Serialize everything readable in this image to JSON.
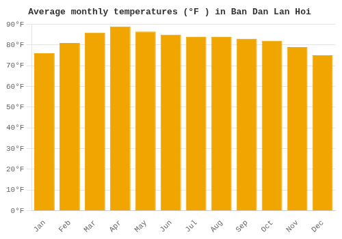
{
  "chart_data": {
    "type": "bar",
    "title": "Average monthly temperatures (°F ) in Ban Dan Lan Hoi",
    "categories": [
      "Jan",
      "Feb",
      "Mar",
      "Apr",
      "May",
      "Jun",
      "Jul",
      "Aug",
      "Sep",
      "Oct",
      "Nov",
      "Dec"
    ],
    "values": [
      76,
      81,
      86,
      89,
      86.5,
      85,
      84,
      84,
      83,
      82,
      79,
      75
    ],
    "color": "#F0A500",
    "ylim": [
      0,
      90
    ],
    "yticks": [
      {
        "value": 0,
        "label": "0°F"
      },
      {
        "value": 10,
        "label": "10°F"
      },
      {
        "value": 20,
        "label": "20°F"
      },
      {
        "value": 30,
        "label": "30°F"
      },
      {
        "value": 40,
        "label": "40°F"
      },
      {
        "value": 50,
        "label": "50°F"
      },
      {
        "value": 60,
        "label": "60°F"
      },
      {
        "value": 70,
        "label": "70°F"
      },
      {
        "value": 80,
        "label": "80°F"
      },
      {
        "value": 90,
        "label": "90°F"
      }
    ],
    "grid": true
  }
}
